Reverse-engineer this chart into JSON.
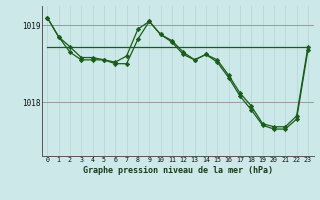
{
  "title": "Graphe pression niveau de la mer (hPa)",
  "background_color": "#cce8e8",
  "grid_color_v": "#b8d8d8",
  "grid_color_h": "#999999",
  "line_color": "#1a5c1a",
  "marker_color": "#1a5c1a",
  "xlim": [
    -0.5,
    23.5
  ],
  "ylim": [
    1017.3,
    1019.25
  ],
  "yticks": [
    1018,
    1019
  ],
  "ytick_labels": [
    "1018",
    "1019"
  ],
  "xticks": [
    0,
    1,
    2,
    3,
    4,
    5,
    6,
    7,
    8,
    9,
    10,
    11,
    12,
    13,
    14,
    15,
    16,
    17,
    18,
    19,
    20,
    21,
    22,
    23
  ],
  "series1": {
    "x": [
      0,
      1,
      2,
      3,
      4,
      5,
      6,
      7,
      8,
      9,
      10,
      11,
      12,
      13,
      14,
      15,
      16,
      17,
      18,
      19,
      20,
      21,
      22,
      23
    ],
    "y": [
      1019.1,
      1018.85,
      1018.65,
      1018.55,
      1018.55,
      1018.55,
      1018.5,
      1018.5,
      1018.82,
      1019.05,
      1018.88,
      1018.8,
      1018.65,
      1018.55,
      1018.62,
      1018.55,
      1018.35,
      1018.12,
      1017.95,
      1017.72,
      1017.68,
      1017.68,
      1017.82,
      1018.72
    ]
  },
  "series2": {
    "x": [
      0,
      1,
      2,
      3,
      4,
      5,
      6,
      7,
      8,
      9,
      10,
      11,
      12,
      13,
      14,
      15,
      16,
      17,
      18,
      19,
      20,
      21,
      22,
      23
    ],
    "y": [
      1019.1,
      1018.85,
      1018.72,
      1018.58,
      1018.58,
      1018.55,
      1018.52,
      1018.6,
      1018.95,
      1019.05,
      1018.88,
      1018.78,
      1018.62,
      1018.55,
      1018.62,
      1018.52,
      1018.32,
      1018.08,
      1017.9,
      1017.7,
      1017.65,
      1017.65,
      1017.78,
      1018.68
    ]
  },
  "flat_line": {
    "x": [
      0,
      23
    ],
    "y": [
      1018.72,
      1018.72
    ]
  }
}
